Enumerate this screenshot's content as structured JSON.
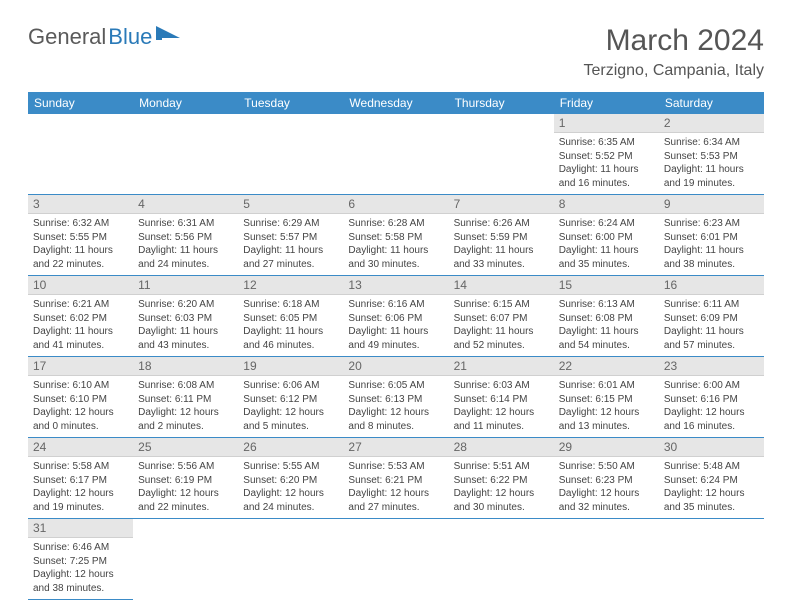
{
  "logo": {
    "text1": "General",
    "text2": "Blue"
  },
  "title": "March 2024",
  "location": "Terzigno, Campania, Italy",
  "colors": {
    "header_bg": "#3b8bc7",
    "header_text": "#ffffff",
    "daynum_bg": "#e6e6e6",
    "row_border": "#3b8bc7",
    "page_bg": "#ffffff",
    "logo_gray": "#5a5a5a",
    "logo_blue": "#2a7ab8"
  },
  "weekdays": [
    "Sunday",
    "Monday",
    "Tuesday",
    "Wednesday",
    "Thursday",
    "Friday",
    "Saturday"
  ],
  "cells": [
    null,
    null,
    null,
    null,
    null,
    {
      "n": "1",
      "sr": "Sunrise: 6:35 AM",
      "ss": "Sunset: 5:52 PM",
      "dl": "Daylight: 11 hours and 16 minutes."
    },
    {
      "n": "2",
      "sr": "Sunrise: 6:34 AM",
      "ss": "Sunset: 5:53 PM",
      "dl": "Daylight: 11 hours and 19 minutes."
    },
    {
      "n": "3",
      "sr": "Sunrise: 6:32 AM",
      "ss": "Sunset: 5:55 PM",
      "dl": "Daylight: 11 hours and 22 minutes."
    },
    {
      "n": "4",
      "sr": "Sunrise: 6:31 AM",
      "ss": "Sunset: 5:56 PM",
      "dl": "Daylight: 11 hours and 24 minutes."
    },
    {
      "n": "5",
      "sr": "Sunrise: 6:29 AM",
      "ss": "Sunset: 5:57 PM",
      "dl": "Daylight: 11 hours and 27 minutes."
    },
    {
      "n": "6",
      "sr": "Sunrise: 6:28 AM",
      "ss": "Sunset: 5:58 PM",
      "dl": "Daylight: 11 hours and 30 minutes."
    },
    {
      "n": "7",
      "sr": "Sunrise: 6:26 AM",
      "ss": "Sunset: 5:59 PM",
      "dl": "Daylight: 11 hours and 33 minutes."
    },
    {
      "n": "8",
      "sr": "Sunrise: 6:24 AM",
      "ss": "Sunset: 6:00 PM",
      "dl": "Daylight: 11 hours and 35 minutes."
    },
    {
      "n": "9",
      "sr": "Sunrise: 6:23 AM",
      "ss": "Sunset: 6:01 PM",
      "dl": "Daylight: 11 hours and 38 minutes."
    },
    {
      "n": "10",
      "sr": "Sunrise: 6:21 AM",
      "ss": "Sunset: 6:02 PM",
      "dl": "Daylight: 11 hours and 41 minutes."
    },
    {
      "n": "11",
      "sr": "Sunrise: 6:20 AM",
      "ss": "Sunset: 6:03 PM",
      "dl": "Daylight: 11 hours and 43 minutes."
    },
    {
      "n": "12",
      "sr": "Sunrise: 6:18 AM",
      "ss": "Sunset: 6:05 PM",
      "dl": "Daylight: 11 hours and 46 minutes."
    },
    {
      "n": "13",
      "sr": "Sunrise: 6:16 AM",
      "ss": "Sunset: 6:06 PM",
      "dl": "Daylight: 11 hours and 49 minutes."
    },
    {
      "n": "14",
      "sr": "Sunrise: 6:15 AM",
      "ss": "Sunset: 6:07 PM",
      "dl": "Daylight: 11 hours and 52 minutes."
    },
    {
      "n": "15",
      "sr": "Sunrise: 6:13 AM",
      "ss": "Sunset: 6:08 PM",
      "dl": "Daylight: 11 hours and 54 minutes."
    },
    {
      "n": "16",
      "sr": "Sunrise: 6:11 AM",
      "ss": "Sunset: 6:09 PM",
      "dl": "Daylight: 11 hours and 57 minutes."
    },
    {
      "n": "17",
      "sr": "Sunrise: 6:10 AM",
      "ss": "Sunset: 6:10 PM",
      "dl": "Daylight: 12 hours and 0 minutes."
    },
    {
      "n": "18",
      "sr": "Sunrise: 6:08 AM",
      "ss": "Sunset: 6:11 PM",
      "dl": "Daylight: 12 hours and 2 minutes."
    },
    {
      "n": "19",
      "sr": "Sunrise: 6:06 AM",
      "ss": "Sunset: 6:12 PM",
      "dl": "Daylight: 12 hours and 5 minutes."
    },
    {
      "n": "20",
      "sr": "Sunrise: 6:05 AM",
      "ss": "Sunset: 6:13 PM",
      "dl": "Daylight: 12 hours and 8 minutes."
    },
    {
      "n": "21",
      "sr": "Sunrise: 6:03 AM",
      "ss": "Sunset: 6:14 PM",
      "dl": "Daylight: 12 hours and 11 minutes."
    },
    {
      "n": "22",
      "sr": "Sunrise: 6:01 AM",
      "ss": "Sunset: 6:15 PM",
      "dl": "Daylight: 12 hours and 13 minutes."
    },
    {
      "n": "23",
      "sr": "Sunrise: 6:00 AM",
      "ss": "Sunset: 6:16 PM",
      "dl": "Daylight: 12 hours and 16 minutes."
    },
    {
      "n": "24",
      "sr": "Sunrise: 5:58 AM",
      "ss": "Sunset: 6:17 PM",
      "dl": "Daylight: 12 hours and 19 minutes."
    },
    {
      "n": "25",
      "sr": "Sunrise: 5:56 AM",
      "ss": "Sunset: 6:19 PM",
      "dl": "Daylight: 12 hours and 22 minutes."
    },
    {
      "n": "26",
      "sr": "Sunrise: 5:55 AM",
      "ss": "Sunset: 6:20 PM",
      "dl": "Daylight: 12 hours and 24 minutes."
    },
    {
      "n": "27",
      "sr": "Sunrise: 5:53 AM",
      "ss": "Sunset: 6:21 PM",
      "dl": "Daylight: 12 hours and 27 minutes."
    },
    {
      "n": "28",
      "sr": "Sunrise: 5:51 AM",
      "ss": "Sunset: 6:22 PM",
      "dl": "Daylight: 12 hours and 30 minutes."
    },
    {
      "n": "29",
      "sr": "Sunrise: 5:50 AM",
      "ss": "Sunset: 6:23 PM",
      "dl": "Daylight: 12 hours and 32 minutes."
    },
    {
      "n": "30",
      "sr": "Sunrise: 5:48 AM",
      "ss": "Sunset: 6:24 PM",
      "dl": "Daylight: 12 hours and 35 minutes."
    },
    {
      "n": "31",
      "sr": "Sunrise: 6:46 AM",
      "ss": "Sunset: 7:25 PM",
      "dl": "Daylight: 12 hours and 38 minutes."
    },
    null,
    null,
    null,
    null,
    null,
    null
  ]
}
